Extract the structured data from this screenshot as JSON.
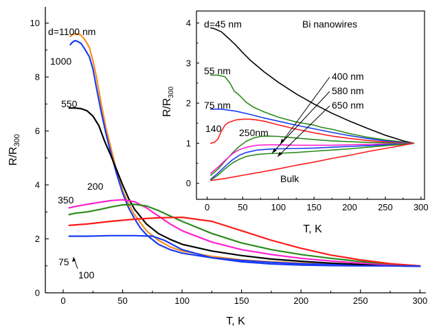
{
  "chart_data": [
    {
      "type": "line",
      "panel": "main",
      "xlabel": "T, K",
      "ylabel": "R/R",
      "ylabel_sub": "300",
      "xlim": [
        -15,
        305
      ],
      "ylim": [
        0,
        10.6
      ],
      "xticks": [
        0,
        50,
        100,
        150,
        200,
        250,
        300
      ],
      "yticks": [
        0,
        2,
        4,
        6,
        8,
        10
      ],
      "grid": false,
      "series": [
        {
          "name": "d=1100 nm",
          "color": "#ff8c1a",
          "x": [
            6,
            8,
            10,
            12,
            15,
            18,
            22,
            25,
            28,
            32,
            36,
            40,
            45,
            50,
            55,
            60,
            65,
            70,
            80,
            90,
            100,
            125,
            150,
            175,
            200,
            225,
            250,
            275,
            300
          ],
          "y": [
            9.5,
            9.58,
            9.6,
            9.6,
            9.55,
            9.4,
            9.1,
            8.6,
            8.0,
            7.0,
            6.1,
            5.4,
            4.5,
            3.8,
            3.3,
            2.9,
            2.6,
            2.3,
            1.95,
            1.7,
            1.55,
            1.35,
            1.22,
            1.15,
            1.1,
            1.06,
            1.03,
            1.0,
            0.98
          ]
        },
        {
          "name": "1000",
          "color": "#1a3cf0",
          "x": [
            6,
            8,
            10,
            12,
            15,
            18,
            22,
            25,
            28,
            32,
            36,
            40,
            45,
            50,
            55,
            60,
            65,
            70,
            80,
            90,
            100,
            125,
            150,
            175,
            200,
            225,
            250,
            275,
            300
          ],
          "y": [
            9.2,
            9.3,
            9.35,
            9.32,
            9.25,
            9.05,
            8.75,
            8.3,
            7.6,
            6.7,
            5.9,
            5.2,
            4.4,
            3.7,
            3.15,
            2.75,
            2.4,
            2.15,
            1.8,
            1.6,
            1.47,
            1.3,
            1.2,
            1.13,
            1.08,
            1.05,
            1.02,
            1.0,
            0.98
          ]
        },
        {
          "name": "550",
          "color": "#000000",
          "x": [
            5,
            10,
            15,
            20,
            25,
            30,
            35,
            40,
            45,
            50,
            55,
            60,
            70,
            80,
            90,
            100,
            125,
            150,
            175,
            200,
            225,
            250,
            275,
            300
          ],
          "y": [
            6.85,
            6.85,
            6.83,
            6.75,
            6.55,
            6.2,
            5.6,
            5.1,
            4.55,
            4.0,
            3.5,
            3.1,
            2.55,
            2.2,
            1.98,
            1.8,
            1.55,
            1.38,
            1.25,
            1.17,
            1.1,
            1.05,
            1.02,
            1.0
          ]
        },
        {
          "name": "350",
          "color": "#ff1fd2",
          "x": [
            5,
            10,
            20,
            30,
            40,
            50,
            60,
            70,
            80,
            90,
            100,
            125,
            150,
            175,
            200,
            225,
            250,
            275,
            300
          ],
          "y": [
            3.15,
            3.2,
            3.28,
            3.35,
            3.42,
            3.45,
            3.38,
            3.15,
            2.85,
            2.55,
            2.3,
            1.88,
            1.6,
            1.42,
            1.28,
            1.18,
            1.1,
            1.04,
            1.0
          ]
        },
        {
          "name": "200",
          "color": "#2a8a1a",
          "x": [
            5,
            10,
            20,
            30,
            40,
            50,
            60,
            70,
            80,
            90,
            100,
            125,
            150,
            175,
            200,
            225,
            250,
            275,
            300
          ],
          "y": [
            2.9,
            2.95,
            3.0,
            3.08,
            3.18,
            3.26,
            3.28,
            3.22,
            3.05,
            2.85,
            2.65,
            2.2,
            1.85,
            1.6,
            1.42,
            1.28,
            1.16,
            1.07,
            1.0
          ]
        },
        {
          "name": "100",
          "color": "#ff1a1a",
          "x": [
            5,
            20,
            40,
            60,
            80,
            100,
            125,
            150,
            175,
            200,
            225,
            250,
            275,
            300
          ],
          "y": [
            2.5,
            2.55,
            2.65,
            2.73,
            2.78,
            2.8,
            2.65,
            2.3,
            1.95,
            1.65,
            1.4,
            1.22,
            1.08,
            1.0
          ]
        },
        {
          "name": "75",
          "color": "#1a3cf0",
          "x": [
            5,
            20,
            40,
            60,
            75,
            85,
            100,
            125,
            150,
            175,
            200,
            225,
            250,
            275,
            300
          ],
          "y": [
            2.1,
            2.1,
            2.12,
            2.12,
            2.1,
            1.95,
            1.6,
            1.3,
            1.15,
            1.07,
            1.03,
            1.01,
            1.0,
            1.0,
            0.99
          ]
        }
      ],
      "annotations": [
        {
          "text": "d=1100 nm"
        },
        {
          "text": "1000"
        },
        {
          "text": "550"
        },
        {
          "text": "200"
        },
        {
          "text": "350"
        },
        {
          "text": "75"
        },
        {
          "text": "100"
        }
      ]
    },
    {
      "type": "line",
      "panel": "inset",
      "title": "Bi nanowires",
      "xlabel": "T, K",
      "ylabel": "R/R",
      "ylabel_sub": "300",
      "xlim": [
        -15,
        305
      ],
      "ylim": [
        -0.4,
        4.3
      ],
      "xticks": [
        0,
        50,
        100,
        150,
        200,
        250,
        300
      ],
      "yticks": [
        0,
        1,
        2,
        3,
        4
      ],
      "grid": false,
      "series": [
        {
          "name": "d=45 nm",
          "color": "#000000",
          "x": [
            5,
            10,
            20,
            30,
            40,
            50,
            60,
            80,
            100,
            125,
            150,
            175,
            200,
            225,
            250,
            275,
            290
          ],
          "y": [
            3.88,
            3.86,
            3.78,
            3.62,
            3.45,
            3.26,
            3.08,
            2.78,
            2.52,
            2.23,
            1.98,
            1.75,
            1.55,
            1.37,
            1.2,
            1.06,
            1.0
          ]
        },
        {
          "name": "55 nm",
          "color": "#2a8a1a",
          "x": [
            5,
            15,
            25,
            32,
            38,
            45,
            55,
            65,
            80,
            100,
            125,
            150,
            160,
            175,
            200,
            225,
            250,
            275,
            290
          ],
          "y": [
            2.7,
            2.7,
            2.66,
            2.5,
            2.3,
            2.2,
            2.02,
            1.9,
            1.78,
            1.65,
            1.53,
            1.45,
            1.4,
            1.35,
            1.24,
            1.15,
            1.08,
            1.03,
            1.0
          ]
        },
        {
          "name": "75 nm",
          "color": "#1a3cf0",
          "x": [
            5,
            20,
            40,
            60,
            80,
            100,
            125,
            150,
            175,
            200,
            225,
            250,
            275,
            290
          ],
          "y": [
            1.85,
            1.85,
            1.8,
            1.72,
            1.63,
            1.55,
            1.45,
            1.36,
            1.27,
            1.19,
            1.12,
            1.06,
            1.02,
            1.0
          ]
        },
        {
          "name": "140",
          "color": "#ff1a1a",
          "x": [
            5,
            10,
            15,
            20,
            25,
            30,
            40,
            50,
            60,
            70,
            80,
            100,
            125,
            150,
            175,
            200,
            225,
            250,
            275,
            290
          ],
          "y": [
            1.0,
            1.02,
            1.1,
            1.3,
            1.45,
            1.52,
            1.58,
            1.6,
            1.6,
            1.58,
            1.55,
            1.46,
            1.35,
            1.26,
            1.18,
            1.12,
            1.07,
            1.03,
            1.01,
            1.0
          ]
        },
        {
          "name": "250nm",
          "color": "#2a8a1a",
          "x": [
            5,
            15,
            25,
            35,
            45,
            55,
            65,
            75,
            85,
            100,
            125,
            150,
            175,
            200,
            225,
            250,
            275,
            290
          ],
          "y": [
            0.2,
            0.35,
            0.55,
            0.75,
            0.92,
            1.05,
            1.13,
            1.17,
            1.18,
            1.17,
            1.13,
            1.09,
            1.06,
            1.04,
            1.02,
            1.01,
            1.0,
            1.0
          ]
        },
        {
          "name": "400 nm",
          "color": "#ff1fd2",
          "x": [
            5,
            15,
            25,
            35,
            45,
            55,
            70,
            85,
            100,
            125,
            150,
            175,
            200,
            225,
            250,
            275,
            290
          ],
          "y": [
            0.25,
            0.4,
            0.57,
            0.73,
            0.84,
            0.9,
            0.95,
            0.96,
            0.96,
            0.95,
            0.95,
            0.95,
            0.96,
            0.97,
            0.98,
            0.99,
            1.0
          ]
        },
        {
          "name": "580 nm",
          "color": "#1a3cf0",
          "x": [
            5,
            15,
            25,
            35,
            45,
            55,
            70,
            85,
            100,
            125,
            150,
            175,
            200,
            225,
            250,
            275,
            290
          ],
          "y": [
            0.1,
            0.25,
            0.42,
            0.58,
            0.7,
            0.77,
            0.83,
            0.85,
            0.86,
            0.87,
            0.88,
            0.9,
            0.92,
            0.94,
            0.96,
            0.98,
            1.0
          ]
        },
        {
          "name": "650 nm",
          "color": "#2a8a1a",
          "x": [
            5,
            15,
            25,
            35,
            45,
            55,
            70,
            85,
            100,
            125,
            150,
            175,
            200,
            225,
            250,
            275,
            290
          ],
          "y": [
            0.08,
            0.2,
            0.36,
            0.5,
            0.6,
            0.67,
            0.72,
            0.74,
            0.75,
            0.77,
            0.8,
            0.83,
            0.86,
            0.9,
            0.94,
            0.97,
            1.0
          ]
        },
        {
          "name": "Bulk",
          "color": "#ff1a1a",
          "x": [
            5,
            25,
            50,
            75,
            100,
            125,
            150,
            175,
            200,
            225,
            250,
            275,
            290
          ],
          "y": [
            0.07,
            0.12,
            0.2,
            0.28,
            0.36,
            0.45,
            0.53,
            0.62,
            0.7,
            0.79,
            0.87,
            0.95,
            1.0
          ]
        }
      ],
      "annotations": [
        {
          "text": "d=45 nm"
        },
        {
          "text": "55 nm"
        },
        {
          "text": "75 nm"
        },
        {
          "text": "140"
        },
        {
          "text": "250nm"
        },
        {
          "text": "400 nm"
        },
        {
          "text": "580 nm"
        },
        {
          "text": "650 nm"
        },
        {
          "text": "Bulk"
        }
      ]
    }
  ]
}
